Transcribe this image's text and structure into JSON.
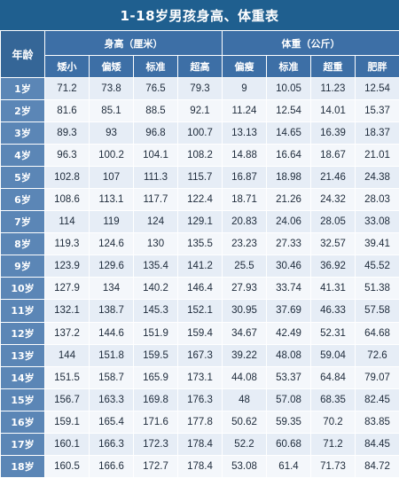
{
  "title": "1-18岁男孩身高、体重表",
  "header": {
    "age": "年龄",
    "height_group": "身高（厘米）",
    "weight_group": "体重（公斤）",
    "height_cols": [
      "矮小",
      "偏矮",
      "标准",
      "超高"
    ],
    "weight_cols": [
      "偏瘦",
      "标准",
      "超重",
      "肥胖"
    ]
  },
  "rows": [
    {
      "age": "1岁",
      "values": [
        "71.2",
        "73.8",
        "76.5",
        "79.3",
        "9",
        "10.05",
        "11.23",
        "12.54"
      ]
    },
    {
      "age": "2岁",
      "values": [
        "81.6",
        "85.1",
        "88.5",
        "92.1",
        "11.24",
        "12.54",
        "14.01",
        "15.37"
      ]
    },
    {
      "age": "3岁",
      "values": [
        "89.3",
        "93",
        "96.8",
        "100.7",
        "13.13",
        "14.65",
        "16.39",
        "18.37"
      ]
    },
    {
      "age": "4岁",
      "values": [
        "96.3",
        "100.2",
        "104.1",
        "108.2",
        "14.88",
        "16.64",
        "18.67",
        "21.01"
      ]
    },
    {
      "age": "5岁",
      "values": [
        "102.8",
        "107",
        "111.3",
        "115.7",
        "16.87",
        "18.98",
        "21.46",
        "24.38"
      ]
    },
    {
      "age": "6岁",
      "values": [
        "108.6",
        "113.1",
        "117.7",
        "122.4",
        "18.71",
        "21.26",
        "24.32",
        "28.03"
      ]
    },
    {
      "age": "7岁",
      "values": [
        "114",
        "119",
        "124",
        "129.1",
        "20.83",
        "24.06",
        "28.05",
        "33.08"
      ]
    },
    {
      "age": "8岁",
      "values": [
        "119.3",
        "124.6",
        "130",
        "135.5",
        "23.23",
        "27.33",
        "32.57",
        "39.41"
      ]
    },
    {
      "age": "9岁",
      "values": [
        "123.9",
        "129.6",
        "135.4",
        "141.2",
        "25.5",
        "30.46",
        "36.92",
        "45.52"
      ]
    },
    {
      "age": "10岁",
      "values": [
        "127.9",
        "134",
        "140.2",
        "146.4",
        "27.93",
        "33.74",
        "41.31",
        "51.38"
      ]
    },
    {
      "age": "11岁",
      "values": [
        "132.1",
        "138.7",
        "145.3",
        "152.1",
        "30.95",
        "37.69",
        "46.33",
        "57.58"
      ]
    },
    {
      "age": "12岁",
      "values": [
        "137.2",
        "144.6",
        "151.9",
        "159.4",
        "34.67",
        "42.49",
        "52.31",
        "64.68"
      ]
    },
    {
      "age": "13岁",
      "values": [
        "144",
        "151.8",
        "159.5",
        "167.3",
        "39.22",
        "48.08",
        "59.04",
        "72.6"
      ]
    },
    {
      "age": "14岁",
      "values": [
        "151.5",
        "158.7",
        "165.9",
        "173.1",
        "44.08",
        "53.37",
        "64.84",
        "79.07"
      ]
    },
    {
      "age": "15岁",
      "values": [
        "156.7",
        "163.3",
        "169.8",
        "176.3",
        "48",
        "57.08",
        "68.35",
        "82.45"
      ]
    },
    {
      "age": "16岁",
      "values": [
        "159.1",
        "165.4",
        "171.6",
        "177.8",
        "50.62",
        "59.35",
        "70.2",
        "83.85"
      ]
    },
    {
      "age": "17岁",
      "values": [
        "160.1",
        "166.3",
        "172.3",
        "178.4",
        "52.2",
        "60.68",
        "71.2",
        "84.45"
      ]
    },
    {
      "age": "18岁",
      "values": [
        "160.5",
        "166.6",
        "172.7",
        "178.4",
        "53.08",
        "61.4",
        "71.73",
        "84.72"
      ]
    }
  ],
  "colors": {
    "title_bg": "#1f5f8f",
    "header_bg": "#3d6fa6",
    "age_cell_bg": "#5b86b6",
    "row_odd_bg": "#e6edf6",
    "row_even_bg": "#f4f7fb"
  }
}
